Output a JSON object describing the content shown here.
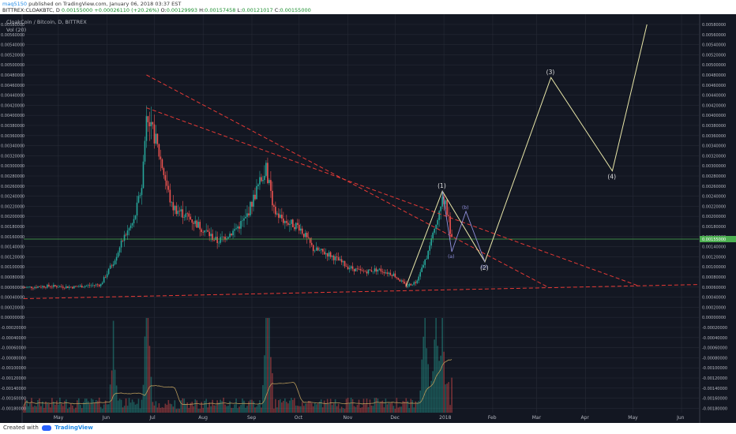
{
  "header": {
    "user": "maq5150",
    "published": "published on TradingView.com, January 06, 2018 03:37 EST",
    "symbol": "BITTREX:CLOAKBTC, D",
    "open_label": "O:",
    "open": "0.00129993",
    "high_label": "H:",
    "high": "0.00157458",
    "low_label": "L:",
    "low": "0.00121017",
    "close_label": "C:",
    "close": "0.00155000",
    "last": "0.00155000",
    "change": "+0.00026110 (+20.26%)"
  },
  "footer": {
    "created_with": "Created with",
    "brand": "TradingView"
  },
  "colors": {
    "background": "#131722",
    "grid": "#262a36",
    "up": "#26a69a",
    "down": "#ef5350",
    "trendline": "#e53935",
    "elliott": "#e8e6a8",
    "corrective": "#8e8ed9",
    "price_line": "#4caf50",
    "ma": "#b89a5a"
  },
  "chart_data": {
    "type": "candlestick",
    "title": "CloakCoin / Bitcoin, D, BITTREX",
    "indicator": "Vol (20)",
    "y_ticks": [
      "0.00580000",
      "0.00560000",
      "0.00540000",
      "0.00520000",
      "0.00500000",
      "0.00480000",
      "0.00460000",
      "0.00440000",
      "0.00420000",
      "0.00400000",
      "0.00380000",
      "0.00360000",
      "0.00340000",
      "0.00320000",
      "0.00300000",
      "0.00280000",
      "0.00260000",
      "0.00240000",
      "0.00220000",
      "0.00200000",
      "0.00180000",
      "0.00160000",
      "0.00140000",
      "0.00120000",
      "0.00100000",
      "0.00080000",
      "0.00060000",
      "0.00040000",
      "0.00020000",
      "0.00000000",
      "-0.00020000",
      "-0.00040000",
      "-0.00060000",
      "-0.00080000",
      "-0.00100000",
      "-0.00120000",
      "-0.00140000",
      "-0.00160000",
      "-0.00180000"
    ],
    "x_ticks": [
      {
        "label": "May",
        "date": "2017-05-01"
      },
      {
        "label": "Jun",
        "date": "2017-06-01"
      },
      {
        "label": "Jul",
        "date": "2017-07-01"
      },
      {
        "label": "Aug",
        "date": "2017-08-01"
      },
      {
        "label": "Sep",
        "date": "2017-09-01"
      },
      {
        "label": "Oct",
        "date": "2017-10-01"
      },
      {
        "label": "Nov",
        "date": "2017-11-01"
      },
      {
        "label": "Dec",
        "date": "2017-12-01"
      },
      {
        "label": "2018",
        "date": "2018-01-01"
      },
      {
        "label": "Feb",
        "date": "2018-02-01"
      },
      {
        "label": "Mar",
        "date": "2018-03-01"
      },
      {
        "label": "Apr",
        "date": "2018-04-01"
      },
      {
        "label": "May",
        "date": "2018-05-01"
      },
      {
        "label": "Jun",
        "date": "2018-06-01"
      }
    ],
    "price_path": [
      [
        "2017-04-09",
        0.00059
      ],
      [
        "2017-04-25",
        0.00062
      ],
      [
        "2017-05-10",
        0.0006
      ],
      [
        "2017-05-28",
        0.00065
      ],
      [
        "2017-06-05",
        0.0011
      ],
      [
        "2017-06-12",
        0.0016
      ],
      [
        "2017-06-18",
        0.0019
      ],
      [
        "2017-06-23",
        0.0026
      ],
      [
        "2017-06-26",
        0.00395
      ],
      [
        "2017-07-01",
        0.0036
      ],
      [
        "2017-07-06",
        0.003
      ],
      [
        "2017-07-12",
        0.0022
      ],
      [
        "2017-07-22",
        0.002
      ],
      [
        "2017-08-01",
        0.00175
      ],
      [
        "2017-08-10",
        0.0015
      ],
      [
        "2017-08-20",
        0.0017
      ],
      [
        "2017-08-28",
        0.00195
      ],
      [
        "2017-09-05",
        0.0026
      ],
      [
        "2017-09-10",
        0.00295
      ],
      [
        "2017-09-15",
        0.0021
      ],
      [
        "2017-09-22",
        0.0019
      ],
      [
        "2017-10-01",
        0.0018
      ],
      [
        "2017-10-10",
        0.00135
      ],
      [
        "2017-10-20",
        0.00125
      ],
      [
        "2017-11-01",
        0.001
      ],
      [
        "2017-11-10",
        0.0009
      ],
      [
        "2017-11-20",
        0.00095
      ],
      [
        "2017-11-30",
        0.00085
      ],
      [
        "2017-12-08",
        0.00062
      ],
      [
        "2017-12-14",
        0.0007
      ],
      [
        "2017-12-20",
        0.0011
      ],
      [
        "2017-12-26",
        0.0017
      ],
      [
        "2017-12-31",
        0.00245
      ],
      [
        "2018-01-03",
        0.0021
      ],
      [
        "2018-01-06",
        0.00155
      ]
    ],
    "volume_dates": [
      "2017-06-05",
      "2017-06-26",
      "2017-06-27",
      "2017-09-10",
      "2017-09-12",
      "2017-12-20",
      "2017-12-27",
      "2017-12-31"
    ],
    "current_price": 0.00155,
    "trendlines": [
      {
        "from": [
          "2017-06-26",
          0.0048
        ],
        "to": [
          "2018-03-08",
          0.0006
        ]
      },
      {
        "from": [
          "2017-06-26",
          0.00415
        ],
        "to": [
          "2018-05-05",
          0.00062
        ]
      },
      {
        "from": [
          "2017-04-09",
          0.00037
        ],
        "to": [
          "2018-06-12",
          0.00065
        ]
      }
    ],
    "elliott_wave": [
      {
        "label": "(1)",
        "date": "2017-12-31",
        "price": 0.0025
      },
      {
        "label": "(2)",
        "date": "2018-01-27",
        "price": 0.0011
      },
      {
        "label": "(3)",
        "date": "2018-03-10",
        "price": 0.00475
      },
      {
        "label": "(4)",
        "date": "2018-04-18",
        "price": 0.0029
      },
      {
        "label": "",
        "date": "2018-05-10",
        "price": 0.0058
      }
    ],
    "corrective_wave": [
      {
        "label": "(a)",
        "date": "2018-01-06",
        "price": 0.0013
      },
      {
        "label": "(b)",
        "date": "2018-01-15",
        "price": 0.0021
      },
      {
        "label": "(c)",
        "date": "2018-01-27",
        "price": 0.0011
      }
    ]
  }
}
